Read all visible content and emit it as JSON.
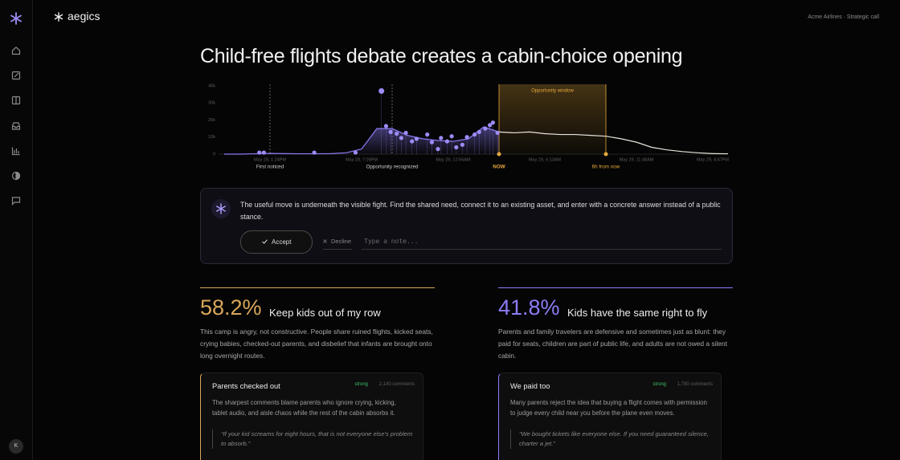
{
  "app": {
    "brand": "aegics",
    "account": "Acme Airlines · Strategic call",
    "avatar": "K"
  },
  "page": {
    "title": "Child-free flights debate creates a cabin-choice opening"
  },
  "chart_data": {
    "type": "line",
    "categories": [
      null,
      null,
      null,
      "May 28, 1:24PM",
      null,
      null,
      null,
      null,
      null,
      "May 28, 7:00PM",
      null,
      null,
      null,
      null,
      null,
      "May 29, 12:56AM",
      null,
      null,
      null,
      null,
      null,
      "May 29, 6:13AM",
      null,
      null,
      null,
      null,
      null,
      "May 29, 11:48AM",
      null,
      null,
      null,
      null,
      "May 29, 4:47PM",
      null
    ],
    "series": [
      {
        "color": "#8b7cf6",
        "values": [
          0,
          0,
          200,
          400,
          300,
          200,
          200,
          300,
          800,
          3000,
          15000,
          15000,
          11000,
          9000,
          8000,
          7500,
          9000,
          16000,
          13000,
          null,
          null,
          null,
          null,
          null,
          null,
          null,
          null,
          null,
          null,
          null,
          null,
          null,
          null,
          null
        ]
      },
      {
        "color": "#e8e4dc",
        "values": [
          null,
          null,
          null,
          null,
          null,
          null,
          null,
          null,
          null,
          null,
          null,
          null,
          null,
          null,
          null,
          null,
          null,
          null,
          13000,
          12500,
          13000,
          12000,
          11500,
          11500,
          11000,
          10500,
          9000,
          7000,
          4000,
          2500,
          1500,
          800,
          300,
          200
        ]
      }
    ],
    "points": {
      "color": "#9d8cf8",
      "x": [
        2.3,
        2.6,
        5.9,
        8.6,
        10.3,
        10.6,
        10.9,
        11.3,
        11.6,
        11.9,
        12.3,
        12.6,
        13.3,
        13.6,
        14,
        14.2,
        14.6,
        14.9,
        15.2,
        15.6,
        15.9,
        16.4,
        16.7,
        17.1,
        17.4,
        17.6,
        17.9
      ],
      "values": [
        900,
        900,
        900,
        900,
        37000,
        16500,
        13000,
        12000,
        9500,
        12500,
        7500,
        9000,
        11500,
        7000,
        3000,
        9500,
        7500,
        10500,
        4000,
        5500,
        10000,
        11500,
        13000,
        15000,
        17000,
        18500,
        12500
      ]
    },
    "ylim": [
      0,
      40000
    ],
    "yticks": [
      0,
      {
        "value": 10000,
        "label": "10k"
      },
      {
        "value": 20000,
        "label": "20k"
      },
      {
        "value": 30000,
        "label": "30k"
      },
      {
        "value": 40000,
        "label": "40k"
      }
    ],
    "grid": false,
    "events": [
      {
        "label": "First noticed",
        "x": 3,
        "color": "#cfcfcf"
      },
      {
        "label": "Opportunity recognized",
        "x": 11,
        "color": "#cfcfcf"
      },
      {
        "label": "NOW",
        "x": 18,
        "color": "#e7a93b"
      },
      {
        "label": "6h from now",
        "x": 25,
        "color": "#e7a93b"
      }
    ],
    "window": {
      "label": "Opportunity window",
      "from": 18,
      "to": 25,
      "color": "#e7a93b"
    }
  },
  "recommendation": {
    "text": "The useful move is underneath the visible fight. Find the shared need, connect it to an existing asset, and enter with a concrete answer instead of a public stance.",
    "accept": "Accept",
    "decline": "Decline",
    "note_placeholder": "Type a note..."
  },
  "camps": [
    {
      "share": "58.2%",
      "title": "Keep kids out of my row",
      "summary": "This camp is angry, not constructive. People share ruined flights, kicked seats, crying babies, checked-out parents, and disbelief that infants are brought onto long overnight routes.",
      "card": {
        "title": "Parents checked out",
        "strength": "strong",
        "comments": "2,140 comments",
        "text": "The sharpest comments blame parents who ignore crying, kicking, tablet audio, and aisle chaos while the rest of the cabin absorbs it.",
        "quote": "“If your kid screams for eight hours, that is not everyone else's problem to absorb.”"
      }
    },
    {
      "share": "41.8%",
      "title": "Kids have the same right to fly",
      "summary": "Parents and family travelers are defensive and sometimes just as blunt: they paid for seats, children are part of public life, and adults are not owed a silent cabin.",
      "card": {
        "title": "We paid too",
        "strength": "strong",
        "comments": "1,780 comments",
        "text": "Many parents reject the idea that buying a flight comes with permission to judge every child near you before the plane even moves.",
        "quote": "“We bought tickets like everyone else. If you need guaranteed silence, charter a jet.”"
      }
    }
  ]
}
